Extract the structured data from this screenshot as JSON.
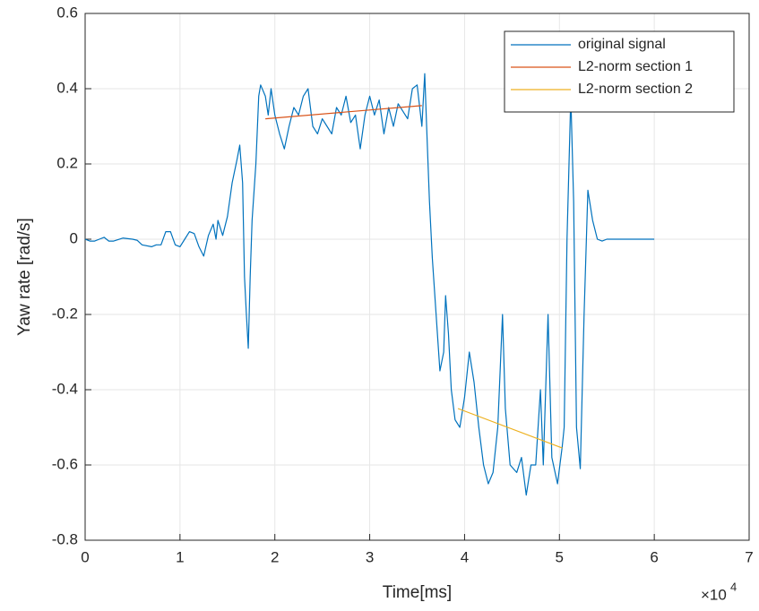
{
  "chart_data": {
    "type": "line",
    "xlabel": "Time[ms]",
    "ylabel": "Yaw rate [rad/s]",
    "x_multiplier": {
      "base": "×10",
      "exponent": "4"
    },
    "xlim": [
      0,
      70000
    ],
    "xticks": [
      {
        "value": 0,
        "label": "0"
      },
      {
        "value": 10000,
        "label": "1"
      },
      {
        "value": 20000,
        "label": "2"
      },
      {
        "value": 30000,
        "label": "3"
      },
      {
        "value": 40000,
        "label": "4"
      },
      {
        "value": 50000,
        "label": "5"
      },
      {
        "value": 60000,
        "label": "6"
      },
      {
        "value": 70000,
        "label": "7"
      }
    ],
    "ylim": [
      -0.8,
      0.6
    ],
    "yticks": [
      -0.8,
      -0.6,
      -0.4,
      -0.2,
      0,
      0.2,
      0.4,
      0.6
    ],
    "grid": true,
    "legend": "northeast",
    "series": [
      {
        "name": "original signal",
        "color": "#0072BD",
        "x": [
          0,
          500,
          1000,
          1500,
          2000,
          2500,
          3000,
          4000,
          5000,
          5500,
          6000,
          7000,
          7500,
          8000,
          8500,
          9000,
          9500,
          10000,
          10500,
          11000,
          11500,
          12000,
          12500,
          13000,
          13500,
          13800,
          14000,
          14500,
          15000,
          15500,
          16000,
          16300,
          16600,
          16800,
          17000,
          17200,
          17400,
          17600,
          18000,
          18300,
          18500,
          19000,
          19300,
          19600,
          20000,
          20500,
          21000,
          21500,
          22000,
          22500,
          23000,
          23500,
          24000,
          24500,
          25000,
          25500,
          26000,
          26500,
          27000,
          27500,
          28000,
          28500,
          29000,
          29500,
          30000,
          30500,
          31000,
          31500,
          32000,
          32500,
          33000,
          33500,
          34000,
          34500,
          35000,
          35500,
          35800,
          36000,
          36300,
          36600,
          37000,
          37400,
          37800,
          38000,
          38300,
          38600,
          39000,
          39500,
          40000,
          40500,
          41000,
          41500,
          42000,
          42500,
          43000,
          43500,
          44000,
          44300,
          44800,
          45500,
          46000,
          46500,
          47000,
          47500,
          48000,
          48300,
          48800,
          49200,
          49800,
          50300,
          50500,
          50800,
          51200,
          51500,
          51800,
          52200,
          52600,
          53000,
          53500,
          54000,
          54500,
          55000,
          56000,
          60000
        ],
        "values": [
          0,
          -0.005,
          -0.005,
          0,
          0.005,
          -0.005,
          -0.005,
          0.003,
          0,
          -0.003,
          -0.015,
          -0.02,
          -0.015,
          -0.015,
          0.02,
          0.02,
          -0.015,
          -0.02,
          0,
          0.02,
          0.015,
          -0.02,
          -0.045,
          0.01,
          0.04,
          0,
          0.05,
          0.01,
          0.06,
          0.15,
          0.21,
          0.25,
          0.15,
          -0.1,
          -0.2,
          -0.29,
          -0.1,
          0.05,
          0.2,
          0.38,
          0.41,
          0.38,
          0.33,
          0.4,
          0.33,
          0.28,
          0.24,
          0.3,
          0.35,
          0.33,
          0.38,
          0.4,
          0.3,
          0.28,
          0.32,
          0.3,
          0.28,
          0.35,
          0.33,
          0.38,
          0.31,
          0.33,
          0.24,
          0.33,
          0.38,
          0.33,
          0.37,
          0.28,
          0.35,
          0.3,
          0.36,
          0.34,
          0.32,
          0.4,
          0.41,
          0.3,
          0.44,
          0.3,
          0.1,
          -0.05,
          -0.2,
          -0.35,
          -0.3,
          -0.15,
          -0.25,
          -0.4,
          -0.48,
          -0.5,
          -0.42,
          -0.3,
          -0.38,
          -0.5,
          -0.6,
          -0.65,
          -0.62,
          -0.5,
          -0.2,
          -0.45,
          -0.6,
          -0.62,
          -0.58,
          -0.68,
          -0.6,
          -0.6,
          -0.4,
          -0.6,
          -0.2,
          -0.58,
          -0.65,
          -0.55,
          -0.5,
          0,
          0.38,
          0.1,
          -0.5,
          -0.61,
          -0.2,
          0.13,
          0.05,
          0,
          -0.005,
          0,
          0,
          0
        ]
      },
      {
        "name": "L2-norm section 1",
        "color": "#D95319",
        "x": [
          19000,
          35500
        ],
        "values": [
          0.32,
          0.355
        ]
      },
      {
        "name": "L2-norm section 2",
        "color": "#EDB120",
        "x": [
          39300,
          50300
        ],
        "values": [
          -0.45,
          -0.555
        ]
      }
    ]
  }
}
